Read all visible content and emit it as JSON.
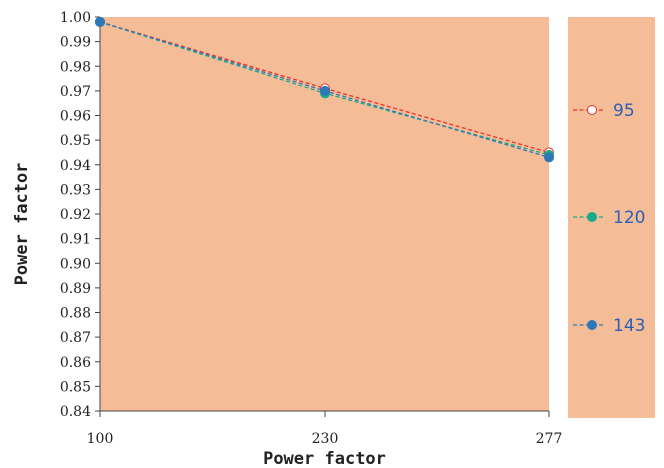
{
  "colors": {
    "plot_background": "#f5bc98",
    "legend_background": "#f5bc98"
  },
  "chart_data": {
    "type": "line",
    "xlabel": "Power factor",
    "ylabel": "Power factor",
    "x": [
      100,
      230,
      277
    ],
    "x_tick_labels": [
      "100",
      "230",
      "277"
    ],
    "ylim": [
      0.84,
      1.0
    ],
    "y_tick_labels": [
      "0.84",
      "0.85",
      "0.86",
      "0.87",
      "0.88",
      "0.89",
      "0.90",
      "0.91",
      "0.92",
      "0.93",
      "0.94",
      "0.95",
      "0.96",
      "0.97",
      "0.98",
      "0.99",
      "1.00"
    ],
    "grid": false,
    "legend_position": "right",
    "series": [
      {
        "name": "95",
        "values": [
          0.998,
          0.971,
          0.945
        ],
        "line_color": "#e8332a",
        "marker_color": "#ffffff"
      },
      {
        "name": "120",
        "values": [
          0.998,
          0.969,
          0.944
        ],
        "line_color": "#1aab8a",
        "marker_color": "#1aab8a"
      },
      {
        "name": "143",
        "values": [
          0.998,
          0.97,
          0.943
        ],
        "line_color": "#2e78b8",
        "marker_color": "#2e78b8"
      }
    ]
  }
}
